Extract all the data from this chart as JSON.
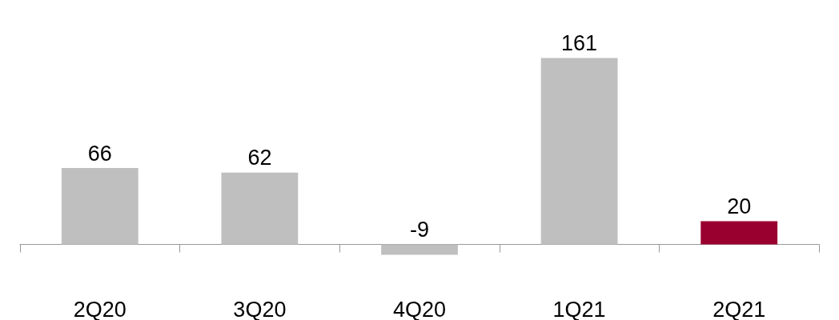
{
  "chart_data": {
    "type": "bar",
    "categories": [
      "2Q20",
      "3Q20",
      "4Q20",
      "1Q21",
      "2Q21"
    ],
    "values": [
      66,
      62,
      -9,
      161,
      20
    ],
    "colors": [
      "#bfbfbf",
      "#bfbfbf",
      "#bfbfbf",
      "#bfbfbf",
      "#990030"
    ],
    "data_labels": true
  }
}
